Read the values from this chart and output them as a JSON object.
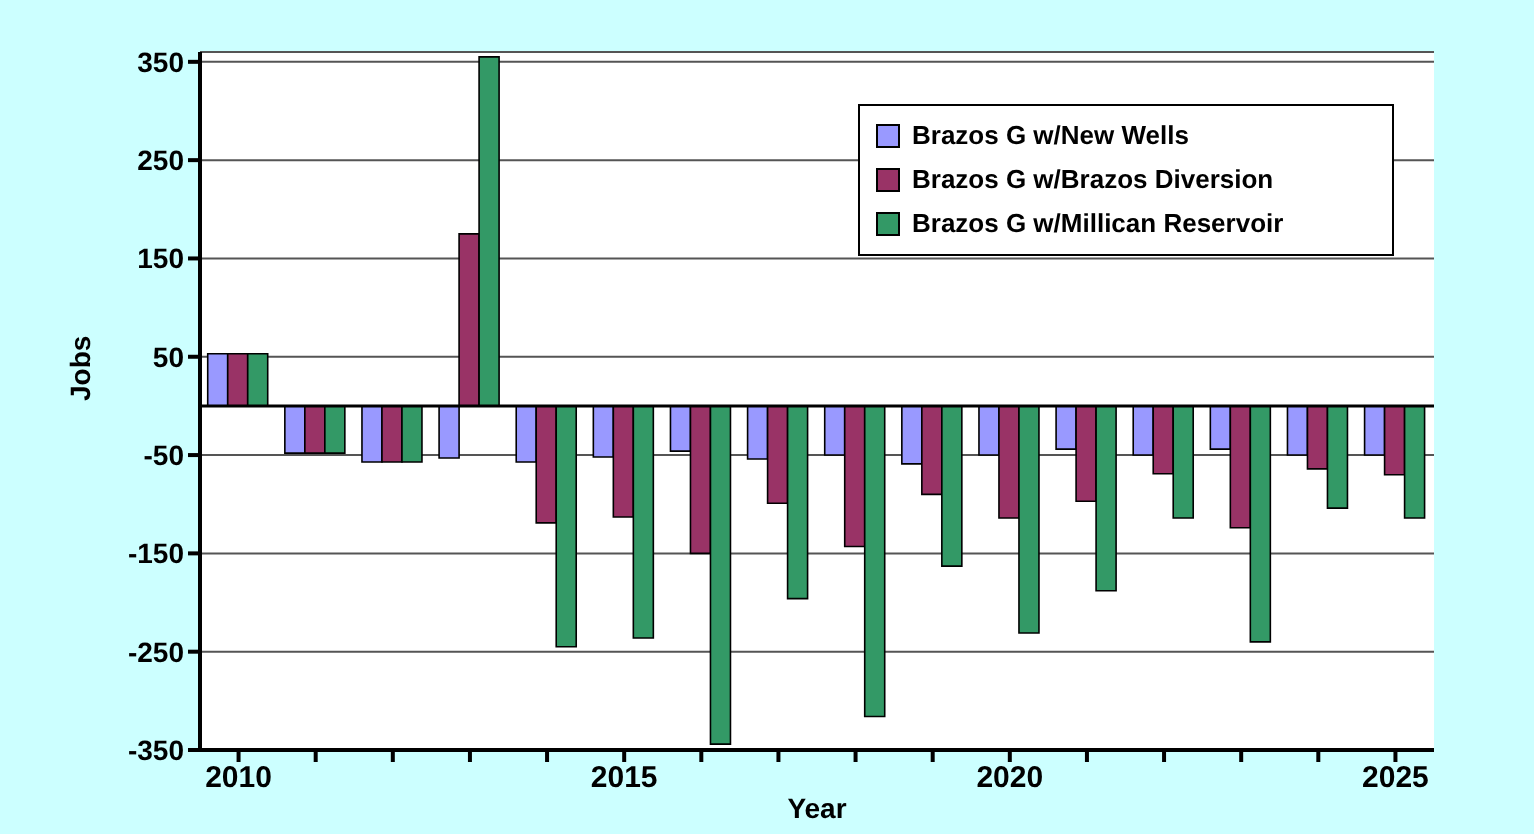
{
  "chart_data": {
    "type": "bar",
    "xlabel": "Year",
    "ylabel": "Jobs",
    "categories": [
      "2010",
      null,
      null,
      null,
      null,
      "2015",
      null,
      null,
      null,
      null,
      "2020",
      null,
      null,
      null,
      null,
      "2025"
    ],
    "series": [
      {
        "name": "Brazos G w/New Wells",
        "color": "#9999ff",
        "values": [
          53,
          -48,
          -57,
          -53,
          -57,
          -52,
          -46,
          -54,
          -50,
          -59,
          -50,
          -44,
          -50,
          -44,
          -50,
          -50
        ]
      },
      {
        "name": "Brazos G w/Brazos Diversion",
        "color": "#993366",
        "values": [
          53,
          -48,
          -57,
          175,
          -119,
          -113,
          -150,
          -99,
          -143,
          -90,
          -114,
          -97,
          -69,
          -124,
          -64,
          -70
        ]
      },
      {
        "name": "Brazos G w/Millican Reservoir",
        "color": "#339966",
        "values": [
          53,
          -48,
          -57,
          355,
          -245,
          -236,
          -344,
          -196,
          -316,
          -163,
          -231,
          -188,
          -114,
          -240,
          -104,
          -114
        ]
      }
    ],
    "ylim": [
      -350,
      360
    ],
    "yticks": [
      -350,
      -250,
      -150,
      -50,
      50,
      150,
      250,
      350
    ],
    "grid": "y",
    "legend": "top right"
  }
}
